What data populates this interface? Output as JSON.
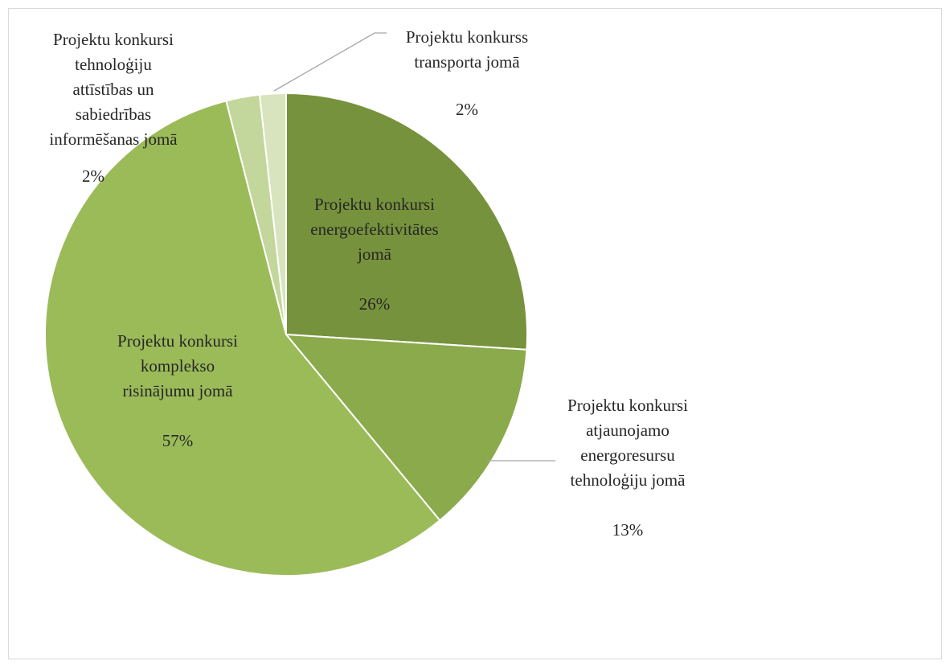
{
  "chart_data": {
    "type": "pie",
    "title": "",
    "start_angle_deg": 0,
    "direction": "clockwise",
    "legend": "none",
    "series": [
      {
        "values": [
          26,
          13,
          57,
          2,
          2
        ],
        "categories": [
          "Projektu konkursi energoefektivitātes jomā",
          "Projektu konkursi atjaunojamo energoresursu tehnoloģiju jomā",
          "Projektu konkursi komplekso risinājumu jomā",
          "Projektu konkursi tehnoloģiju attīstības un sabiedrības informēšanas jomā",
          "Projektu konkurss transporta jomā"
        ]
      }
    ],
    "slices": [
      {
        "label_lines": [
          "Projektu konkursi",
          "energoefektivitātes",
          "jomā"
        ],
        "value_label": "26%",
        "share": 0.26,
        "color": "#76923c"
      },
      {
        "label_lines": [
          "Projektu konkursi",
          "atjaunojamo",
          "energoresursu",
          "tehnoloģiju jomā"
        ],
        "value_label": "13%",
        "share": 0.13,
        "color": "#8aaa4c"
      },
      {
        "label_lines": [
          "Projektu konkursi",
          "komplekso",
          "risinājumu jomā"
        ],
        "value_label": "57%",
        "share": 0.57,
        "color": "#9bbb59"
      },
      {
        "label_lines": [
          "Projektu konkursi",
          "tehnoloģiju",
          "attīstības un",
          "sabiedrības",
          "informēšanas jomā"
        ],
        "value_label": "2%",
        "share": 0.0225,
        "color": "#c3d69b"
      },
      {
        "label_lines": [
          "Projektu konkurss",
          "transporta jomā"
        ],
        "value_label": "2%",
        "share": 0.0175,
        "color": "#d7e4bd"
      }
    ]
  }
}
